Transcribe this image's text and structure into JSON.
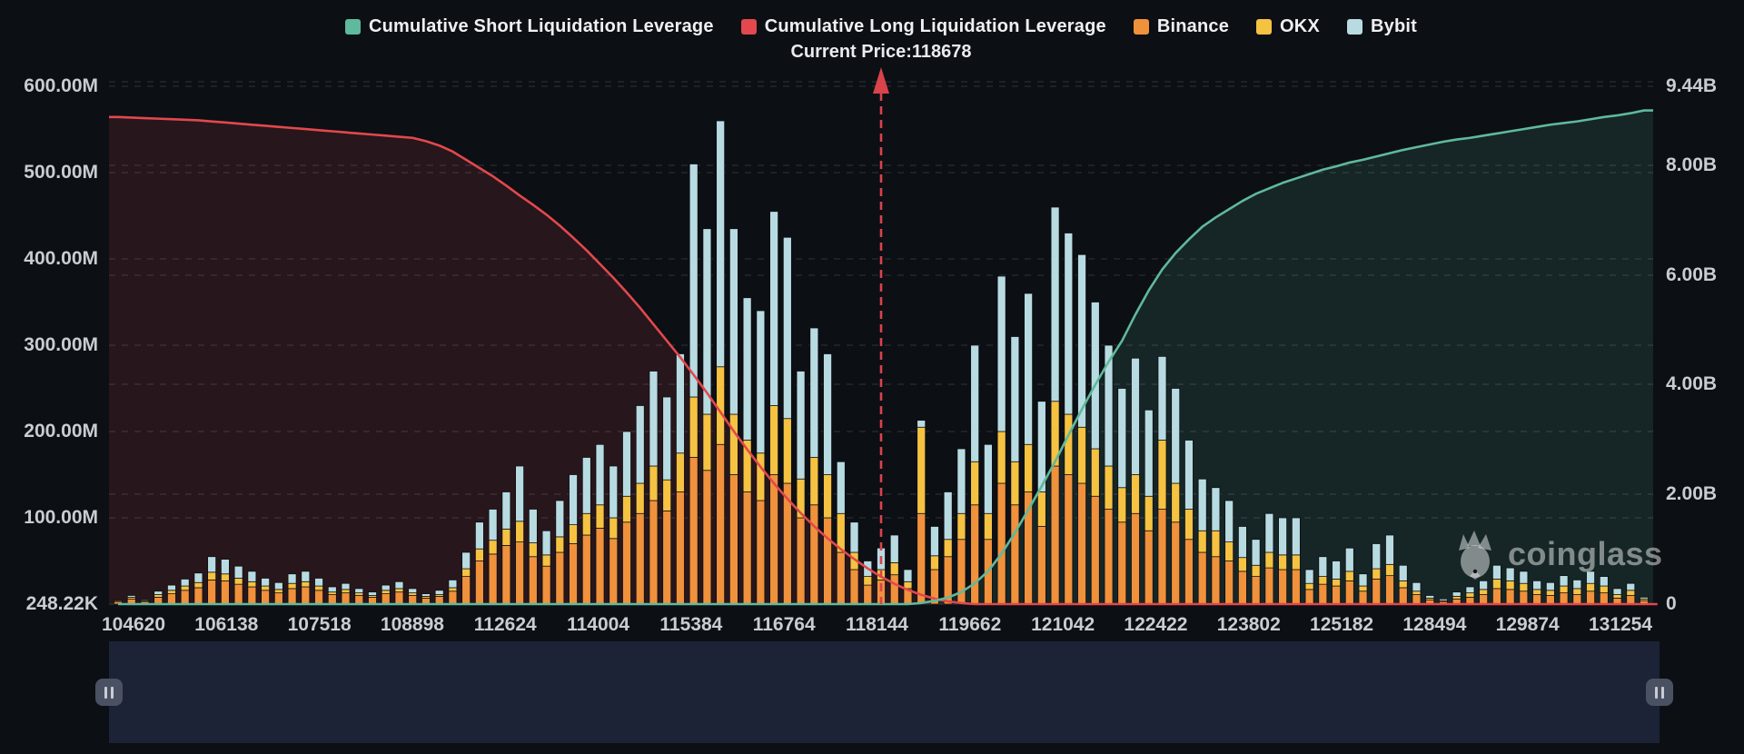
{
  "legend": {
    "items": [
      {
        "label": "Cumulative Short Liquidation Leverage",
        "color": "#5fb99c",
        "kind": "line"
      },
      {
        "label": "Cumulative Long Liquidation Leverage",
        "color": "#e2484d",
        "kind": "line"
      },
      {
        "label": "Binance",
        "color": "#f0913c",
        "kind": "bar"
      },
      {
        "label": "OKX",
        "color": "#f5c242",
        "kind": "bar"
      },
      {
        "label": "Bybit",
        "color": "#b8dbe2",
        "kind": "bar"
      }
    ]
  },
  "header": {
    "current_price_label": "Current Price:118678"
  },
  "watermark": {
    "text": "coinglass"
  },
  "navigator": {
    "background": "#1c2336",
    "left_handle_icon": "pause-grip",
    "right_handle_icon": "pause-grip"
  },
  "chart_data": {
    "type": "bar",
    "title": "",
    "current_price": 118678,
    "left_axis": {
      "tick_labels": [
        "600.00M",
        "500.00M",
        "400.00M",
        "300.00M",
        "200.00M",
        "100.00M",
        "248.22K"
      ],
      "max_m": 600,
      "min_label": "248.22K"
    },
    "right_axis": {
      "tick_labels": [
        "9.44B",
        "8.00B",
        "6.00B",
        "4.00B",
        "2.00B",
        "0"
      ],
      "max_b": 9.44
    },
    "x_tick_labels": [
      "104620",
      "106138",
      "107518",
      "108898",
      "112624",
      "114004",
      "115384",
      "116764",
      "118144",
      "119662",
      "121042",
      "122422",
      "123802",
      "125182",
      "128494",
      "129874",
      "131254"
    ],
    "legend_position": "top",
    "grid": "dashed",
    "bar_series": [
      {
        "name": "Binance",
        "color": "#f0913c",
        "values_usd_m": [
          3,
          6,
          3,
          8,
          12,
          16,
          19,
          28,
          27,
          23,
          20,
          16,
          13,
          18,
          20,
          16,
          11,
          13,
          10,
          8,
          12,
          14,
          10,
          7,
          9,
          15,
          32,
          50,
          58,
          68,
          72,
          55,
          44,
          60,
          70,
          80,
          88,
          76,
          95,
          105,
          120,
          108,
          130,
          170,
          155,
          185,
          150,
          130,
          120,
          150,
          140,
          100,
          115,
          100,
          60,
          40,
          22,
          28,
          34,
          18,
          105,
          40,
          55,
          75,
          115,
          75,
          140,
          115,
          130,
          90,
          160,
          150,
          140,
          125,
          110,
          95,
          105,
          85,
          110,
          95,
          75,
          60,
          55,
          50,
          38,
          32,
          42,
          40,
          40,
          17,
          23,
          21,
          27,
          15,
          29,
          33,
          19,
          11,
          5,
          3,
          6,
          8,
          11,
          18,
          17,
          15,
          11,
          10,
          13,
          11,
          15,
          13,
          7,
          10,
          4
        ]
      },
      {
        "name": "OKX",
        "color": "#f5c242",
        "values_usd_m": [
          1,
          2,
          1,
          3,
          4,
          5,
          6,
          9,
          8,
          7,
          6,
          5,
          4,
          6,
          6,
          5,
          3,
          4,
          3,
          2,
          4,
          4,
          3,
          2,
          2,
          4,
          9,
          14,
          16,
          19,
          24,
          16,
          13,
          18,
          22,
          25,
          27,
          24,
          30,
          35,
          40,
          36,
          45,
          70,
          65,
          90,
          70,
          60,
          55,
          80,
          75,
          45,
          55,
          50,
          45,
          20,
          10,
          12,
          14,
          8,
          100,
          16,
          20,
          30,
          50,
          30,
          60,
          50,
          55,
          40,
          75,
          70,
          65,
          55,
          50,
          40,
          45,
          40,
          80,
          45,
          35,
          25,
          30,
          22,
          16,
          13,
          18,
          17,
          17,
          7,
          9,
          8,
          11,
          6,
          12,
          13,
          8,
          4,
          2,
          1,
          3,
          5,
          6,
          11,
          10,
          9,
          6,
          6,
          8,
          7,
          9,
          8,
          4,
          6,
          2
        ]
      },
      {
        "name": "Bybit",
        "color": "#b8dbe2",
        "values_usd_m": [
          0,
          2,
          1,
          4,
          6,
          8,
          11,
          18,
          17,
          14,
          12,
          9,
          8,
          11,
          12,
          9,
          6,
          7,
          5,
          4,
          6,
          8,
          5,
          3,
          5,
          9,
          19,
          31,
          36,
          43,
          64,
          39,
          28,
          42,
          58,
          65,
          70,
          60,
          75,
          90,
          110,
          96,
          115,
          270,
          215,
          285,
          215,
          165,
          165,
          225,
          210,
          125,
          150,
          140,
          60,
          35,
          18,
          25,
          32,
          14,
          8,
          34,
          55,
          75,
          135,
          80,
          180,
          145,
          175,
          105,
          225,
          210,
          200,
          170,
          140,
          115,
          135,
          100,
          97,
          110,
          80,
          60,
          50,
          48,
          36,
          30,
          45,
          43,
          43,
          16,
          23,
          21,
          27,
          14,
          29,
          34,
          18,
          10,
          3,
          2,
          5,
          7,
          10,
          16,
          15,
          14,
          10,
          9,
          12,
          10,
          14,
          11,
          7,
          8,
          2
        ]
      }
    ],
    "line_series": [
      {
        "name": "Cumulative Long Liquidation Leverage",
        "color": "#e2484d",
        "axis": "right",
        "fill": "rgba(226,72,77,0.13)",
        "values_usd_b": [
          8.88,
          8.87,
          8.86,
          8.85,
          8.84,
          8.83,
          8.82,
          8.8,
          8.78,
          8.76,
          8.74,
          8.72,
          8.7,
          8.68,
          8.66,
          8.64,
          8.62,
          8.6,
          8.58,
          8.56,
          8.54,
          8.52,
          8.5,
          8.44,
          8.36,
          8.25,
          8.1,
          7.95,
          7.8,
          7.63,
          7.45,
          7.28,
          7.1,
          6.9,
          6.68,
          6.45,
          6.2,
          5.95,
          5.68,
          5.4,
          5.1,
          4.8,
          4.5,
          4.18,
          3.85,
          3.5,
          3.15,
          2.82,
          2.5,
          2.2,
          1.92,
          1.66,
          1.42,
          1.2,
          1.0,
          0.82,
          0.65,
          0.5,
          0.37,
          0.26,
          0.17,
          0.1,
          0.05,
          0.02,
          0,
          0,
          0,
          0,
          0,
          0,
          0,
          0,
          0,
          0,
          0,
          0,
          0,
          0,
          0,
          0,
          0,
          0,
          0,
          0,
          0,
          0,
          0,
          0,
          0,
          0,
          0,
          0,
          0,
          0,
          0,
          0,
          0,
          0,
          0,
          0,
          0,
          0,
          0,
          0,
          0,
          0,
          0,
          0,
          0,
          0,
          0,
          0,
          0,
          0,
          0,
          0
        ]
      },
      {
        "name": "Cumulative Short Liquidation Leverage",
        "color": "#5fb99c",
        "axis": "right",
        "fill": "rgba(95,185,156,0.13)",
        "values_usd_b": [
          0,
          0,
          0,
          0,
          0,
          0,
          0,
          0,
          0,
          0,
          0,
          0,
          0,
          0,
          0,
          0,
          0,
          0,
          0,
          0,
          0,
          0,
          0,
          0,
          0,
          0,
          0,
          0,
          0,
          0,
          0,
          0,
          0,
          0,
          0,
          0,
          0,
          0,
          0,
          0,
          0,
          0,
          0,
          0,
          0,
          0,
          0,
          0,
          0,
          0,
          0,
          0,
          0,
          0,
          0,
          0,
          0,
          0,
          0,
          0,
          0.02,
          0.06,
          0.12,
          0.22,
          0.38,
          0.6,
          0.92,
          1.3,
          1.72,
          2.15,
          2.6,
          3.08,
          3.55,
          4.0,
          4.42,
          4.8,
          5.28,
          5.72,
          6.1,
          6.4,
          6.65,
          6.88,
          7.05,
          7.2,
          7.35,
          7.48,
          7.58,
          7.68,
          7.76,
          7.84,
          7.92,
          7.98,
          8.05,
          8.1,
          8.16,
          8.22,
          8.28,
          8.33,
          8.38,
          8.43,
          8.47,
          8.5,
          8.54,
          8.58,
          8.62,
          8.66,
          8.7,
          8.74,
          8.77,
          8.8,
          8.84,
          8.88,
          8.91,
          8.95,
          9.0
        ]
      }
    ],
    "colors": {
      "background": "#0c0f14",
      "grid": "rgba(255,255,255,0.10)",
      "price_line": "#d9434a",
      "axis_text": "#c9cdd2"
    }
  }
}
